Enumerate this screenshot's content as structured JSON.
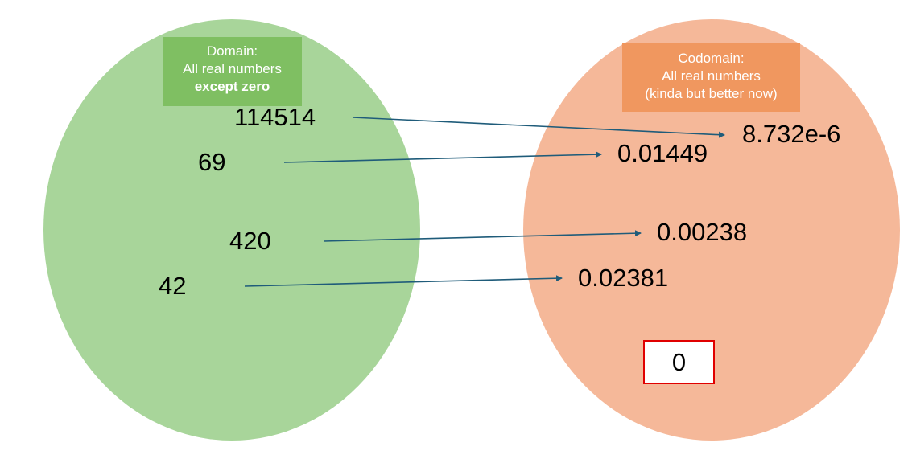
{
  "domain": {
    "title": "Domain:",
    "subtitle": "All real numbers",
    "emphasis": "except zero",
    "fill_color": "#a8d59a",
    "label_color": "#7fbf62",
    "values": [
      "114514",
      "69",
      "420",
      "42"
    ]
  },
  "codomain": {
    "title": "Codomain:",
    "subtitle": "All real numbers",
    "note": "(kinda but better now)",
    "fill_color": "#f5b899",
    "label_color": "#f0975f",
    "values": [
      "8.732e-6",
      "0.01449",
      "0.00238",
      "0.02381"
    ],
    "unmapped_value": "0",
    "unmapped_border_color": "#e00000"
  },
  "mappings": [
    {
      "from": "114514",
      "to": "8.732e-6"
    },
    {
      "from": "69",
      "to": "0.01449"
    },
    {
      "from": "420",
      "to": "0.00238"
    },
    {
      "from": "42",
      "to": "0.02381"
    }
  ],
  "arrow_color": "#1f5c7a"
}
